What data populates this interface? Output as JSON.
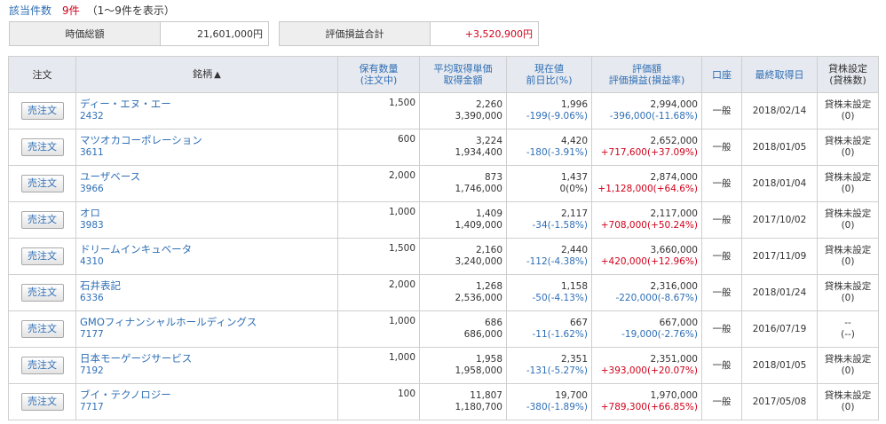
{
  "count": {
    "label": "該当件数",
    "value": "9件",
    "range": "（1～9件を表示）"
  },
  "summary": {
    "market_value_label": "時価総額",
    "market_value": "21,601,000円",
    "pl_label": "評価損益合計",
    "pl_value": "+3,520,900円"
  },
  "columns": {
    "order": "注文",
    "name": "銘柄",
    "sort_icon": "▲",
    "qty_1": "保有数量",
    "qty_2": "(注文中)",
    "avg_1": "平均取得単価",
    "avg_2": "取得金額",
    "price_1": "現在値",
    "price_2": "前日比(%)",
    "eval_1": "評価額",
    "eval_2": "評価損益(損益率)",
    "account": "口座",
    "last_date": "最終取得日",
    "lend_1": "貸株設定",
    "lend_2": "(貸株数)"
  },
  "rows": [
    {
      "button": "売注文",
      "name": "ディー・エヌ・エー",
      "code": "2432",
      "qty": "1,500",
      "avg_price": "2,260",
      "cost": "3,390,000",
      "price": "1,996",
      "change": "-199(-9.06%)",
      "eval": "2,994,000",
      "pl": "-396,000(-11.68%)",
      "account": "一般",
      "date": "2018/02/14",
      "lend": "貸株未設定",
      "lend_qty": "(0)"
    },
    {
      "button": "売注文",
      "name": "マツオカコーポレーション",
      "code": "3611",
      "qty": "600",
      "avg_price": "3,224",
      "cost": "1,934,400",
      "price": "4,420",
      "change": "-180(-3.91%)",
      "eval": "2,652,000",
      "pl": "+717,600(+37.09%)",
      "account": "一般",
      "date": "2018/01/05",
      "lend": "貸株未設定",
      "lend_qty": "(0)"
    },
    {
      "button": "売注文",
      "name": "ユーザベース",
      "code": "3966",
      "qty": "2,000",
      "avg_price": "873",
      "cost": "1,746,000",
      "price": "1,437",
      "change": "0(0%)",
      "eval": "2,874,000",
      "pl": "+1,128,000(+64.6%)",
      "account": "一般",
      "date": "2018/01/04",
      "lend": "貸株未設定",
      "lend_qty": "(0)"
    },
    {
      "button": "売注文",
      "name": "オロ",
      "code": "3983",
      "qty": "1,000",
      "avg_price": "1,409",
      "cost": "1,409,000",
      "price": "2,117",
      "change": "-34(-1.58%)",
      "eval": "2,117,000",
      "pl": "+708,000(+50.24%)",
      "account": "一般",
      "date": "2017/10/02",
      "lend": "貸株未設定",
      "lend_qty": "(0)"
    },
    {
      "button": "売注文",
      "name": "ドリームインキュベータ",
      "code": "4310",
      "qty": "1,500",
      "avg_price": "2,160",
      "cost": "3,240,000",
      "price": "2,440",
      "change": "-112(-4.38%)",
      "eval": "3,660,000",
      "pl": "+420,000(+12.96%)",
      "account": "一般",
      "date": "2017/11/09",
      "lend": "貸株未設定",
      "lend_qty": "(0)"
    },
    {
      "button": "売注文",
      "name": "石井表記",
      "code": "6336",
      "qty": "2,000",
      "avg_price": "1,268",
      "cost": "2,536,000",
      "price": "1,158",
      "change": "-50(-4.13%)",
      "eval": "2,316,000",
      "pl": "-220,000(-8.67%)",
      "account": "一般",
      "date": "2018/01/24",
      "lend": "貸株未設定",
      "lend_qty": "(0)"
    },
    {
      "button": "売注文",
      "name": "GMOフィナンシャルホールディングス",
      "code": "7177",
      "qty": "1,000",
      "avg_price": "686",
      "cost": "686,000",
      "price": "667",
      "change": "-11(-1.62%)",
      "eval": "667,000",
      "pl": "-19,000(-2.76%)",
      "account": "一般",
      "date": "2016/07/19",
      "lend": "--",
      "lend_qty": "(--)"
    },
    {
      "button": "売注文",
      "name": "日本モーゲージサービス",
      "code": "7192",
      "qty": "1,000",
      "avg_price": "1,958",
      "cost": "1,958,000",
      "price": "2,351",
      "change": "-131(-5.27%)",
      "eval": "2,351,000",
      "pl": "+393,000(+20.07%)",
      "account": "一般",
      "date": "2018/01/05",
      "lend": "貸株未設定",
      "lend_qty": "(0)"
    },
    {
      "button": "売注文",
      "name": "ブイ・テクノロジー",
      "code": "7717",
      "qty": "100",
      "avg_price": "11,807",
      "cost": "1,180,700",
      "price": "19,700",
      "change": "-380(-1.89%)",
      "eval": "1,970,000",
      "pl": "+789,300(+66.85%)",
      "account": "一般",
      "date": "2017/05/08",
      "lend": "貸株未設定",
      "lend_qty": "(0)"
    }
  ]
}
